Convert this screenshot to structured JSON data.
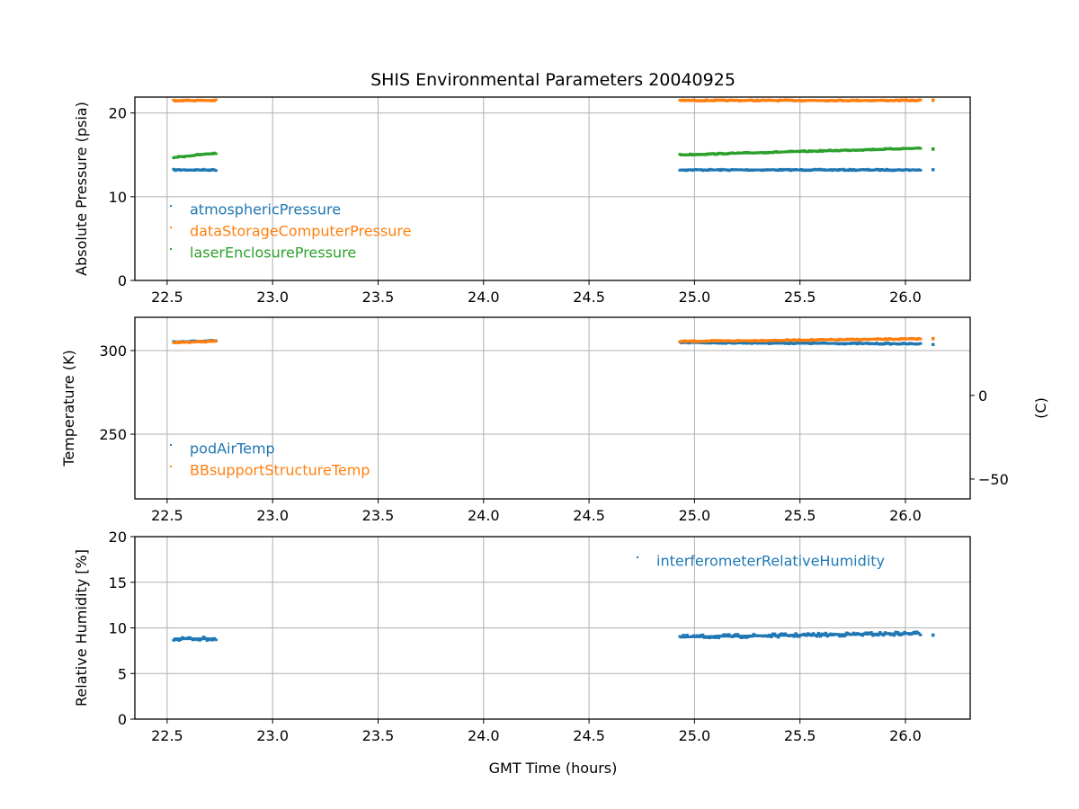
{
  "chart_data": {
    "type": "scatter",
    "title": "SHIS Environmental Parameters 20040925",
    "xlabel": "GMT Time (hours)",
    "xlim": [
      22.347,
      26.307
    ],
    "xticks": [
      "22.5",
      "23.0",
      "23.5",
      "24.0",
      "24.5",
      "25.0",
      "25.5",
      "26.0"
    ],
    "xtick_values": [
      22.5,
      23.0,
      23.5,
      24.0,
      24.5,
      25.0,
      25.5,
      26.0
    ],
    "colors": {
      "blue": "#1f77b4",
      "orange": "#ff7f0e",
      "green": "#2ca02c"
    },
    "panels": [
      {
        "ylabel": "Absolute Pressure (psia)",
        "ylim": [
          0,
          21.9
        ],
        "yticks": [
          "0",
          "10",
          "20"
        ],
        "ytick_values": [
          0,
          10,
          20
        ],
        "legend_placement": "lower-left",
        "series": [
          {
            "name": "atmosphericPressure",
            "color": "#1f77b4",
            "segments": [
              {
                "x": [
                  22.53,
                  22.73
                ],
                "y": [
                  13.2,
                  13.2
                ]
              },
              {
                "x": [
                  24.93,
                  26.07
                ],
                "y": [
                  13.2,
                  13.2
                ]
              },
              {
                "x": [
                  26.13,
                  26.13
                ],
                "y": [
                  13.2,
                  13.2
                ]
              }
            ]
          },
          {
            "name": "dataStorageComputerPressure",
            "color": "#ff7f0e",
            "segments": [
              {
                "x": [
                  22.53,
                  22.73
                ],
                "y": [
                  21.5,
                  21.5
                ]
              },
              {
                "x": [
                  24.93,
                  26.07
                ],
                "y": [
                  21.5,
                  21.5
                ]
              },
              {
                "x": [
                  26.13,
                  26.13
                ],
                "y": [
                  21.5,
                  21.5
                ]
              }
            ]
          },
          {
            "name": "laserEnclosurePressure",
            "color": "#2ca02c",
            "segments": [
              {
                "x": [
                  22.53,
                  22.73
                ],
                "y": [
                  14.7,
                  15.2
                ]
              },
              {
                "x": [
                  24.93,
                  26.07
                ],
                "y": [
                  15.0,
                  15.8
                ]
              },
              {
                "x": [
                  26.13,
                  26.13
                ],
                "y": [
                  15.7,
                  15.7
                ]
              }
            ]
          }
        ]
      },
      {
        "ylabel": "Temperature (K)",
        "ylim": [
          211.3,
          319.9
        ],
        "yticks": [
          "250",
          "300"
        ],
        "ytick_values": [
          250,
          300
        ],
        "right_ylabel": "(C)",
        "right_yticks": [
          "−50",
          "0"
        ],
        "right_ytick_values_c": [
          -50,
          0
        ],
        "legend_placement": "lower-left",
        "series": [
          {
            "name": "podAirTemp",
            "color": "#1f77b4",
            "segments": [
              {
                "x": [
                  22.53,
                  22.73
                ],
                "y": [
                  305.2,
                  305.8
                ]
              },
              {
                "x": [
                  24.93,
                  26.07
                ],
                "y": [
                  304.8,
                  304.0
                ]
              },
              {
                "x": [
                  26.13,
                  26.13
                ],
                "y": [
                  304.0,
                  304.0
                ]
              }
            ]
          },
          {
            "name": "BBsupportStructureTemp",
            "color": "#ff7f0e",
            "segments": [
              {
                "x": [
                  22.53,
                  22.73
                ],
                "y": [
                  304.8,
                  305.6
                ]
              },
              {
                "x": [
                  24.93,
                  26.07
                ],
                "y": [
                  305.5,
                  307.0
                ]
              },
              {
                "x": [
                  26.13,
                  26.13
                ],
                "y": [
                  307.0,
                  307.0
                ]
              }
            ]
          }
        ]
      },
      {
        "ylabel": "Relative Humidity [%]",
        "ylim": [
          0,
          20
        ],
        "yticks": [
          "0",
          "5",
          "10",
          "15",
          "20"
        ],
        "ytick_values": [
          0,
          5,
          10,
          15,
          20
        ],
        "legend_placement": "upper-right",
        "series": [
          {
            "name": "interferometerRelativeHumidity",
            "color": "#1f77b4",
            "segments": [
              {
                "x": [
                  22.53,
                  22.73
                ],
                "y": [
                  8.8,
                  8.8
                ]
              },
              {
                "x": [
                  24.93,
                  26.07
                ],
                "y": [
                  9.0,
                  9.4
                ]
              },
              {
                "x": [
                  26.13,
                  26.13
                ],
                "y": [
                  9.3,
                  9.3
                ]
              }
            ]
          }
        ]
      }
    ]
  }
}
